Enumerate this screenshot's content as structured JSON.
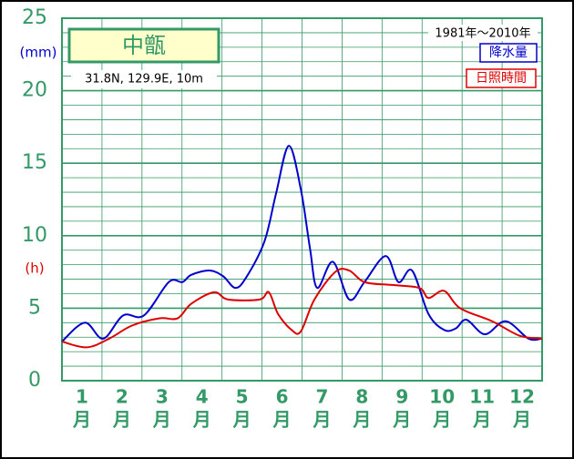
{
  "chart_data": {
    "type": "line",
    "title": "中甑",
    "subtitle": "31.8N,  129.9E,  10m",
    "period": "1981年～2010年",
    "y_unit_left": "(mm)",
    "y_unit_right": "(h)",
    "x_unit": "月",
    "xlim": [
      0.5,
      12.5
    ],
    "xticks": [
      1,
      2,
      3,
      4,
      5,
      6,
      7,
      8,
      9,
      10,
      11,
      12
    ],
    "ylim": [
      0,
      25
    ],
    "yticks": [
      0,
      5,
      10,
      15,
      20,
      25
    ],
    "grid": true,
    "series": [
      {
        "name": "降水量",
        "color": "#0000cc",
        "x": [
          0.5,
          1.07,
          1.53,
          2.03,
          2.55,
          3.17,
          3.51,
          3.73,
          4.19,
          4.53,
          4.83,
          5.1,
          5.56,
          5.85,
          6.17,
          6.47,
          6.7,
          6.88,
          7.27,
          7.68,
          8.06,
          8.59,
          8.91,
          9.25,
          9.66,
          10.05,
          10.34,
          10.61,
          11.07,
          11.59,
          12.16,
          12.5
        ],
        "values": [
          2.7,
          4.0,
          2.9,
          4.5,
          4.5,
          6.8,
          6.8,
          7.3,
          7.6,
          7.2,
          6.4,
          7.1,
          9.6,
          12.9,
          16.2,
          13.2,
          9.1,
          6.4,
          8.2,
          5.6,
          6.8,
          8.6,
          6.8,
          7.6,
          4.6,
          3.5,
          3.6,
          4.2,
          3.2,
          4.1,
          2.9,
          2.9
        ]
      },
      {
        "name": "日照時間",
        "color": "#dd0000",
        "x": [
          0.5,
          1.12,
          1.68,
          2.25,
          2.94,
          3.39,
          3.73,
          4.3,
          4.65,
          5.44,
          5.67,
          5.9,
          6.24,
          6.47,
          6.81,
          7.33,
          7.68,
          8.06,
          8.75,
          9.43,
          9.66,
          10.05,
          10.45,
          11.25,
          11.94,
          12.5
        ],
        "values": [
          2.7,
          2.3,
          2.9,
          3.8,
          4.3,
          4.3,
          5.3,
          6.1,
          5.6,
          5.6,
          6.1,
          4.6,
          3.5,
          3.4,
          5.6,
          7.5,
          7.6,
          6.8,
          6.6,
          6.4,
          5.7,
          6.2,
          5.0,
          4.1,
          3.1,
          2.9
        ]
      }
    ]
  }
}
